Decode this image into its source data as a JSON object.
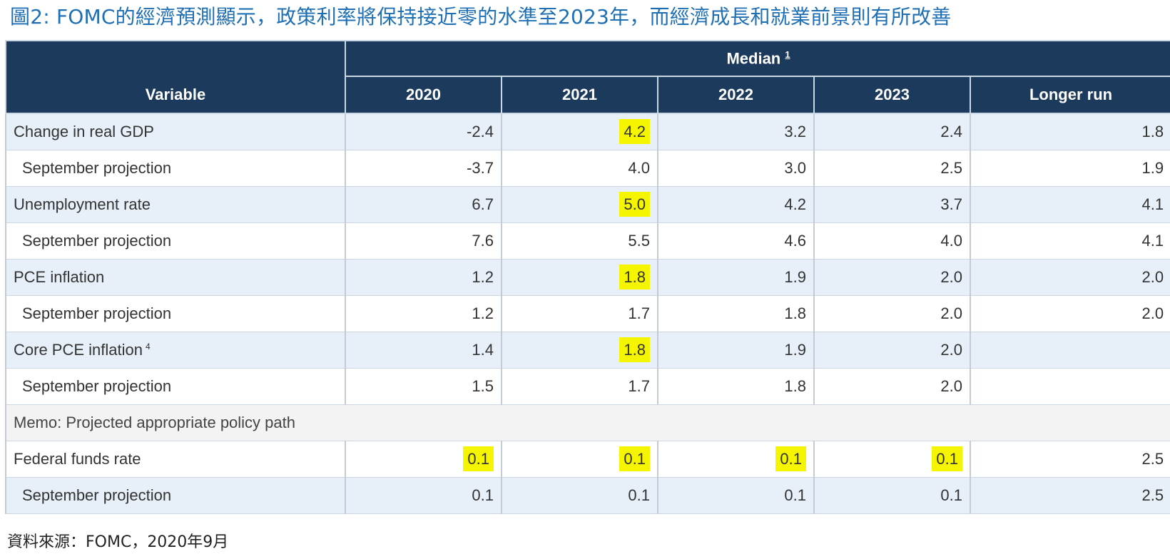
{
  "title": "圖2: FOMC的經濟預測顯示，政策利率將保持接近零的水準至2023年，而經濟成長和就業前景則有所改善",
  "source": "資料來源：FOMC，2020年9月",
  "colors": {
    "header_bg": "#1b3a5c",
    "title": "#1f6fb5",
    "highlight": "#f5f500",
    "row_shade": "#e7f0f8"
  },
  "chart_data": {
    "type": "table",
    "header": {
      "variable_label": "Variable",
      "group_label": "Median",
      "group_footnote": "1",
      "columns": [
        "2020",
        "2021",
        "2022",
        "2023",
        "Longer run"
      ]
    },
    "rows": [
      {
        "label": "Change in real GDP",
        "sub": false,
        "shade": true,
        "values": [
          "-2.4",
          "4.2",
          "3.2",
          "2.4",
          "1.8"
        ],
        "highlight": [
          false,
          true,
          false,
          false,
          false
        ]
      },
      {
        "label": "September projection",
        "sub": true,
        "shade": false,
        "values": [
          "-3.7",
          "4.0",
          "3.0",
          "2.5",
          "1.9"
        ],
        "highlight": [
          false,
          false,
          false,
          false,
          false
        ]
      },
      {
        "label": "Unemployment rate",
        "sub": false,
        "shade": true,
        "values": [
          "6.7",
          "5.0",
          "4.2",
          "3.7",
          "4.1"
        ],
        "highlight": [
          false,
          true,
          false,
          false,
          false
        ]
      },
      {
        "label": "September projection",
        "sub": true,
        "shade": false,
        "values": [
          "7.6",
          "5.5",
          "4.6",
          "4.0",
          "4.1"
        ],
        "highlight": [
          false,
          false,
          false,
          false,
          false
        ]
      },
      {
        "label": "PCE inflation",
        "sub": false,
        "shade": true,
        "values": [
          "1.2",
          "1.8",
          "1.9",
          "2.0",
          "2.0"
        ],
        "highlight": [
          false,
          true,
          false,
          false,
          false
        ]
      },
      {
        "label": "September projection",
        "sub": true,
        "shade": false,
        "values": [
          "1.2",
          "1.7",
          "1.8",
          "2.0",
          "2.0"
        ],
        "highlight": [
          false,
          false,
          false,
          false,
          false
        ]
      },
      {
        "label": "Core PCE inflation",
        "footnote": "4",
        "sub": false,
        "shade": true,
        "values": [
          "1.4",
          "1.8",
          "1.9",
          "2.0",
          ""
        ],
        "highlight": [
          false,
          true,
          false,
          false,
          false
        ]
      },
      {
        "label": "September projection",
        "sub": true,
        "shade": false,
        "values": [
          "1.5",
          "1.7",
          "1.8",
          "2.0",
          ""
        ],
        "highlight": [
          false,
          false,
          false,
          false,
          false
        ]
      },
      {
        "label": "Memo: Projected appropriate policy path",
        "memo": true
      },
      {
        "label": "Federal funds rate",
        "sub": false,
        "shade": false,
        "values": [
          "0.1",
          "0.1",
          "0.1",
          "0.1",
          "2.5"
        ],
        "highlight": [
          true,
          true,
          true,
          true,
          false
        ]
      },
      {
        "label": "September projection",
        "sub": true,
        "shade": true,
        "values": [
          "0.1",
          "0.1",
          "0.1",
          "0.1",
          "2.5"
        ],
        "highlight": [
          false,
          false,
          false,
          false,
          false
        ]
      }
    ]
  }
}
